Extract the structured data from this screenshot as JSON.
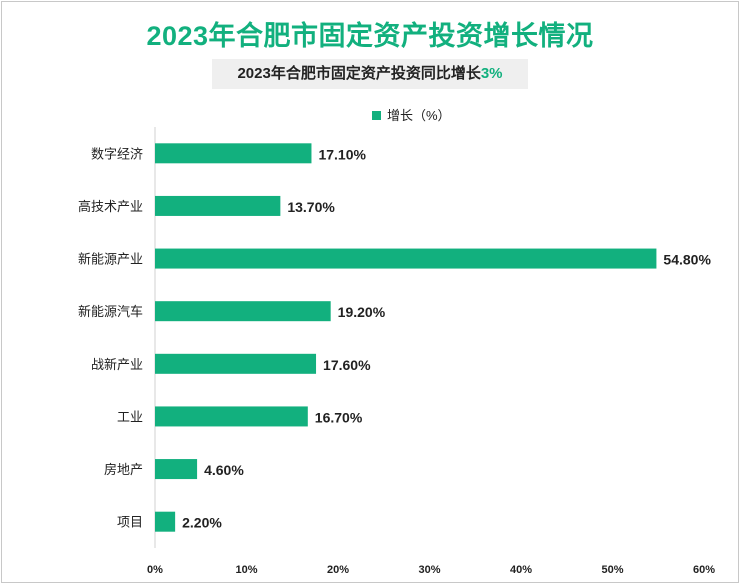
{
  "colors": {
    "accent": "#12b07e",
    "bar": "#12b07e"
  },
  "title": "2023年合肥市固定资产投资增长情况",
  "subtitle": {
    "prefix": "2023年合肥市固定资产投资同比增长",
    "highlight": "3%"
  },
  "chart_data": {
    "type": "bar",
    "orientation": "horizontal",
    "legend": {
      "label": "增长（%）",
      "position": "top"
    },
    "categories": [
      "数字经济",
      "高技术产业",
      "新能源产业",
      "新能源汽车",
      "战新产业",
      "工业",
      "房地产",
      "项目"
    ],
    "series": [
      {
        "name": "增长（%）",
        "values": [
          17.1,
          13.7,
          54.8,
          19.2,
          17.6,
          16.7,
          4.6,
          2.2
        ],
        "labels": [
          "17.10%",
          "13.70%",
          "54.80%",
          "19.20%",
          "17.60%",
          "16.70%",
          "4.60%",
          "2.20%"
        ]
      }
    ],
    "xlim": [
      0,
      60
    ],
    "xticks": [
      0,
      10,
      20,
      30,
      40,
      50,
      60
    ],
    "xtick_labels": [
      "0%",
      "10%",
      "20%",
      "30%",
      "40%",
      "50%",
      "60%"
    ],
    "grid": false
  }
}
